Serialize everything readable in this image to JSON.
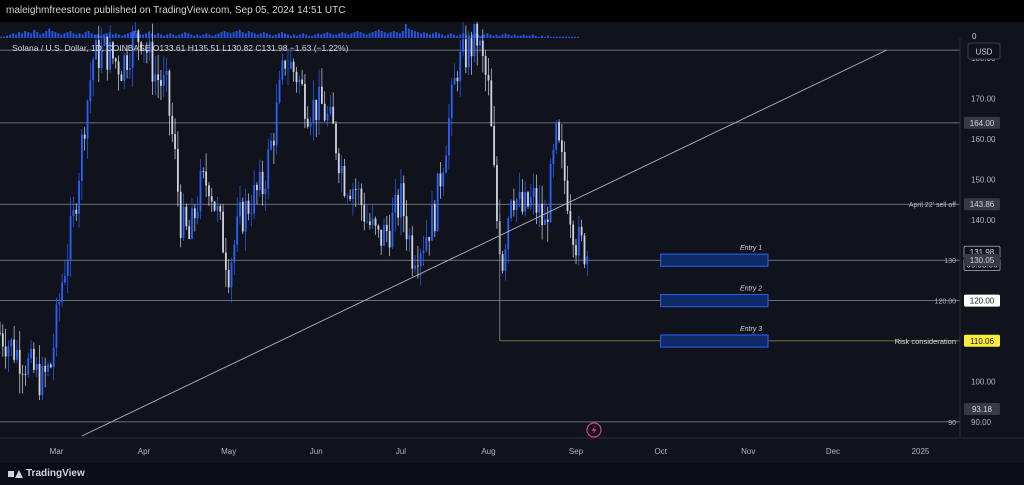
{
  "header": {
    "publisher_line": "maleighmfreestone published on TradingView.com, Sep 05, 2024 14:51 UTC"
  },
  "footer": {
    "brand": "TradingView"
  },
  "colors": {
    "background": "#10131c",
    "up_candle": "#2962ff",
    "down_candle": "#d1d4dc",
    "line": "#8a8d96",
    "trendline": "#b2b5be",
    "risk_line": "#8a7a3a",
    "entry_box_fill": "#0d2a66",
    "entry_box_border": "#2962ff",
    "highlight_label": "#ffeb3b",
    "volume": "#2962ff"
  },
  "chart_data": {
    "type": "candlestick",
    "symbol_line": "Solana / U.S. Dollar, 1D, COINBASE  O133.61 H135.51 L130.82 C131.98  −1.63 (−1.22%)",
    "currency_button": "USD",
    "volume_zero_label": "0",
    "y_axis": {
      "range": [
        86,
        185
      ],
      "tick_labels": [
        "180.00",
        "170.00",
        "160.00",
        "150.00",
        "140.00",
        "130.00",
        "120.00",
        "100.00",
        "90.00"
      ],
      "tick_values": [
        180,
        170,
        160,
        150,
        140,
        130,
        120,
        100,
        90
      ]
    },
    "x_axis": {
      "tick_labels": [
        "Mar",
        "Apr",
        "May",
        "Jun",
        "Jul",
        "Aug",
        "Sep",
        "Oct",
        "Nov",
        "Dec",
        "2025"
      ],
      "tick_dates": [
        "2024-03-01",
        "2024-04-01",
        "2024-05-01",
        "2024-06-01",
        "2024-07-01",
        "2024-08-01",
        "2024-09-01",
        "2024-10-01",
        "2024-11-01",
        "2024-12-01",
        "2025-01-01"
      ],
      "start_date": "2024-02-10",
      "end_date": "2025-01-15"
    },
    "price_labels": [
      {
        "text": "164.00",
        "value": 164,
        "style": "gray"
      },
      {
        "text": "143.86",
        "value": 143.86,
        "style": "gray"
      },
      {
        "text": "131.98",
        "value": 131.98,
        "style": "dark"
      },
      {
        "text": "09:08:06",
        "value": 128.9,
        "style": "dark"
      },
      {
        "text": "130.05",
        "value": 130.05,
        "style": "gray"
      },
      {
        "text": "120.00",
        "value": 120,
        "style": "white"
      },
      {
        "text": "110.06",
        "value": 110.06,
        "style": "yellow"
      },
      {
        "text": "93.18",
        "value": 93.18,
        "style": "gray"
      }
    ],
    "horizontal_lines": [
      {
        "value": 182,
        "label": ""
      },
      {
        "value": 164,
        "label": ""
      },
      {
        "value": 143.86,
        "label": "April 22' sell off"
      },
      {
        "value": 130,
        "label": "130"
      },
      {
        "value": 120,
        "label": "120.00"
      },
      {
        "value": 90,
        "label": "90"
      }
    ],
    "risk_line": {
      "value": 110.06,
      "from_date": "2024-08-05",
      "label": "Risk consideration"
    },
    "risk_vertical": {
      "date": "2024-08-05",
      "from": 145,
      "to": 110.06
    },
    "trendline": {
      "from": [
        "2024-03-10",
        86.5
      ],
      "to": [
        "2024-12-20",
        182
      ]
    },
    "entry_zones": [
      {
        "label": "Entry 1",
        "date_from": "2024-10-01",
        "date_to": "2024-11-08",
        "low": 128.5,
        "high": 131.5
      },
      {
        "label": "Entry 2",
        "date_from": "2024-10-01",
        "date_to": "2024-11-08",
        "low": 118.5,
        "high": 121.5
      },
      {
        "label": "Entry 3",
        "date_from": "2024-10-01",
        "date_to": "2024-11-08",
        "low": 108.5,
        "high": 111.5
      }
    ],
    "price_path": [
      [
        "2024-02-10",
        112
      ],
      [
        "2024-02-15",
        108
      ],
      [
        "2024-02-20",
        104
      ],
      [
        "2024-02-25",
        100
      ],
      [
        "2024-02-28",
        104
      ],
      [
        "2024-03-03",
        125
      ],
      [
        "2024-03-07",
        140
      ],
      [
        "2024-03-11",
        165
      ],
      [
        "2024-03-14",
        180
      ],
      [
        "2024-03-18",
        182
      ],
      [
        "2024-03-24",
        178
      ],
      [
        "2024-03-28",
        184
      ],
      [
        "2024-03-31",
        186
      ],
      [
        "2024-04-05",
        176
      ],
      [
        "2024-04-09",
        172
      ],
      [
        "2024-04-12",
        155
      ],
      [
        "2024-04-14",
        140
      ],
      [
        "2024-04-17",
        135
      ],
      [
        "2024-04-21",
        148
      ],
      [
        "2024-04-24",
        150
      ],
      [
        "2024-04-28",
        138
      ],
      [
        "2024-05-01",
        128
      ],
      [
        "2024-05-05",
        140
      ],
      [
        "2024-05-09",
        145
      ],
      [
        "2024-05-13",
        148
      ],
      [
        "2024-05-17",
        162
      ],
      [
        "2024-05-21",
        180
      ],
      [
        "2024-05-25",
        176
      ],
      [
        "2024-05-29",
        168
      ],
      [
        "2024-06-03",
        168
      ],
      [
        "2024-06-07",
        162
      ],
      [
        "2024-06-11",
        150
      ],
      [
        "2024-06-15",
        148
      ],
      [
        "2024-06-19",
        140
      ],
      [
        "2024-06-23",
        135
      ],
      [
        "2024-06-27",
        138
      ],
      [
        "2024-07-01",
        145
      ],
      [
        "2024-07-05",
        132
      ],
      [
        "2024-07-09",
        135
      ],
      [
        "2024-07-13",
        142
      ],
      [
        "2024-07-17",
        160
      ],
      [
        "2024-07-21",
        178
      ],
      [
        "2024-07-25",
        182
      ],
      [
        "2024-07-28",
        185
      ],
      [
        "2024-08-01",
        172
      ],
      [
        "2024-08-04",
        140
      ],
      [
        "2024-08-06",
        130
      ],
      [
        "2024-08-09",
        148
      ],
      [
        "2024-08-13",
        142
      ],
      [
        "2024-08-17",
        145
      ],
      [
        "2024-08-21",
        138
      ],
      [
        "2024-08-25",
        160
      ],
      [
        "2024-08-28",
        150
      ],
      [
        "2024-09-01",
        135
      ],
      [
        "2024-09-05",
        132
      ]
    ],
    "volume": [
      1,
      1,
      2,
      3,
      4,
      3,
      5,
      4,
      6,
      5,
      4,
      7,
      5,
      3,
      4,
      6,
      8,
      6,
      5,
      4,
      3,
      4,
      5,
      6,
      4,
      3,
      4,
      3,
      5,
      6,
      4,
      3,
      3,
      2,
      3,
      4,
      5,
      3,
      4,
      3,
      2,
      3,
      4,
      5,
      6,
      4,
      3,
      3,
      4,
      5,
      4,
      3,
      4,
      3,
      2,
      3,
      4,
      3,
      2,
      3,
      4,
      5,
      4,
      3,
      2,
      3,
      2,
      3,
      4,
      3,
      2,
      3,
      4,
      5,
      6,
      5,
      4,
      5,
      6,
      7,
      5,
      4,
      6,
      5,
      4,
      3,
      4,
      5,
      4,
      3,
      2,
      3,
      4,
      5,
      4,
      3,
      2,
      3,
      2,
      3,
      4,
      3,
      2,
      2,
      3,
      4,
      3,
      4,
      5,
      4,
      3,
      3,
      4,
      5,
      4,
      3,
      4,
      5,
      6,
      5,
      4,
      3,
      4,
      5,
      6,
      7,
      6,
      5,
      4,
      5,
      6,
      5,
      4,
      6,
      12,
      8,
      7,
      6,
      5,
      4,
      5,
      4,
      3,
      4,
      5,
      4,
      3,
      2,
      3,
      4,
      3,
      2,
      3,
      4,
      3,
      2,
      3,
      4,
      3,
      2,
      3,
      4,
      3,
      2,
      3,
      2,
      3,
      4,
      3,
      2,
      3,
      2,
      2,
      3,
      2,
      2,
      3,
      2,
      1,
      2,
      1,
      2,
      1,
      1,
      1,
      1,
      1,
      1,
      1,
      1,
      1,
      1
    ]
  }
}
